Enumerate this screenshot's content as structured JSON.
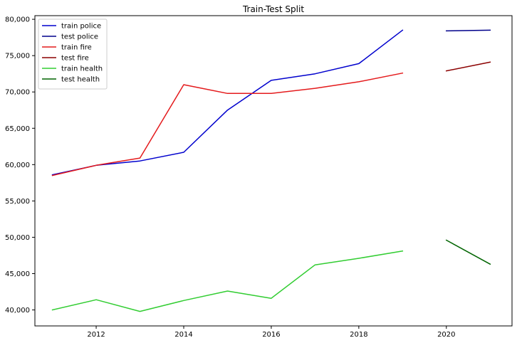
{
  "chart_data": {
    "type": "line",
    "title": "Train-Test Split",
    "xlabel": "",
    "ylabel": "",
    "xlim": [
      2010.6,
      2021.5
    ],
    "ylim": [
      37800,
      80500
    ],
    "grid": false,
    "legend_position": "top-left",
    "x_ticks": [
      2012,
      2014,
      2016,
      2018,
      2020
    ],
    "x_tick_labels": [
      "2012",
      "2014",
      "2016",
      "2018",
      "2020"
    ],
    "y_ticks": [
      40000,
      45000,
      50000,
      55000,
      60000,
      65000,
      70000,
      75000,
      80000
    ],
    "y_tick_labels": [
      "40,000",
      "45,000",
      "50,000",
      "55,000",
      "60,000",
      "65,000",
      "70,000",
      "75,000",
      "80,000"
    ],
    "series": [
      {
        "name": "train police",
        "color": "#0000cd",
        "x": [
          2011,
          2012,
          2013,
          2014,
          2015,
          2016,
          2017,
          2018,
          2019
        ],
        "y": [
          58600,
          59900,
          60500,
          61700,
          67500,
          71600,
          72500,
          73900,
          78500
        ]
      },
      {
        "name": "test police",
        "color": "#00008b",
        "x": [
          2020,
          2021
        ],
        "y": [
          78400,
          78500
        ]
      },
      {
        "name": "train fire",
        "color": "#e41a1c",
        "x": [
          2011,
          2012,
          2013,
          2014,
          2015,
          2016,
          2017,
          2018,
          2019
        ],
        "y": [
          58500,
          59900,
          60900,
          71000,
          69800,
          69800,
          70500,
          71400,
          72600
        ]
      },
      {
        "name": "test fire",
        "color": "#8b0000",
        "x": [
          2020,
          2021
        ],
        "y": [
          72900,
          74100
        ]
      },
      {
        "name": "train health",
        "color": "#32cd32",
        "x": [
          2011,
          2012,
          2013,
          2014,
          2015,
          2016,
          2017,
          2018,
          2019
        ],
        "y": [
          40000,
          41400,
          39800,
          41300,
          42600,
          41600,
          46200,
          47100,
          48100
        ]
      },
      {
        "name": "test health",
        "color": "#006400",
        "x": [
          2020,
          2021
        ],
        "y": [
          49600,
          46300
        ]
      }
    ]
  }
}
